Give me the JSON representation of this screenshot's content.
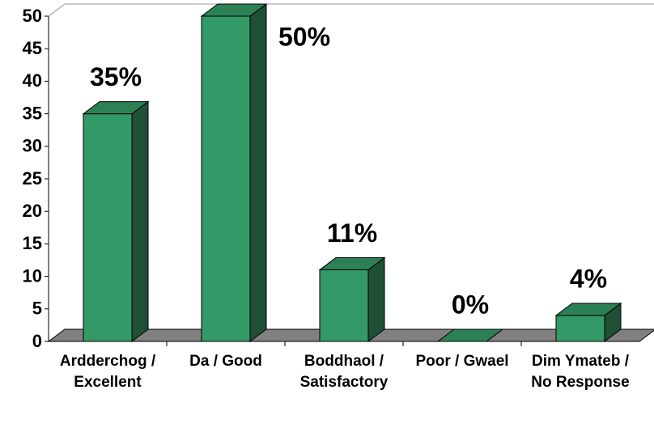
{
  "chart_data": {
    "type": "bar",
    "categories": [
      "Ardderchog / Excellent",
      "Da / Good",
      "Boddhaol / Satisfactory",
      "Poor / Gwael",
      "Dim Ymateb / No Response"
    ],
    "values": [
      35,
      50,
      11,
      0,
      4
    ],
    "value_labels": [
      "35%",
      "50%",
      "11%",
      "0%",
      "4%"
    ],
    "color": "#339966",
    "ylim": [
      0,
      50
    ],
    "yticks": [
      0,
      5,
      10,
      15,
      20,
      25,
      30,
      35,
      40,
      45,
      50
    ],
    "grid": false
  }
}
